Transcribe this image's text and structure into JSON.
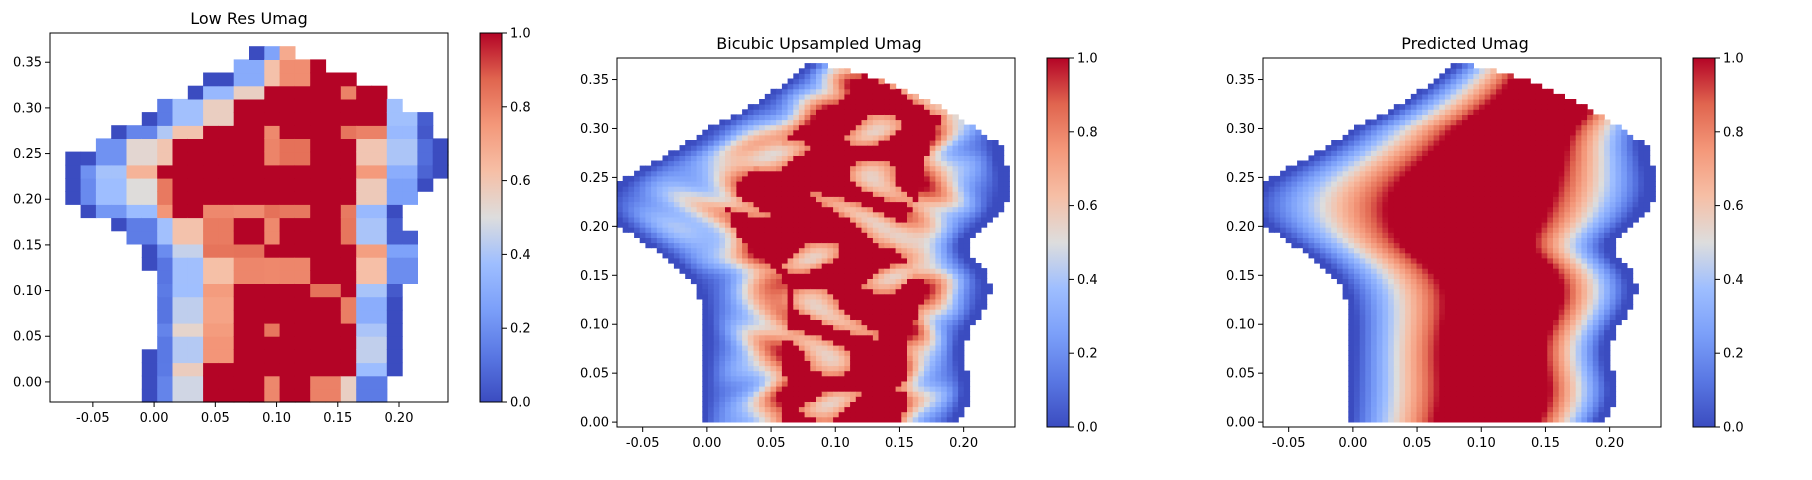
{
  "chart_data": [
    {
      "type": "heatmap",
      "title": "Low Res Umag",
      "xlabel": "",
      "ylabel": "",
      "x_ticks": [
        "-0.05",
        "0.00",
        "0.05",
        "0.10",
        "0.15",
        "0.20"
      ],
      "x_tick_values": [
        -0.05,
        0.0,
        0.05,
        0.1,
        0.15,
        0.2
      ],
      "y_ticks": [
        "0.00",
        "0.05",
        "0.10",
        "0.15",
        "0.20",
        "0.25",
        "0.30",
        "0.35"
      ],
      "y_tick_values": [
        0.0,
        0.05,
        0.1,
        0.15,
        0.2,
        0.25,
        0.3,
        0.35
      ],
      "xlim": [
        -0.085,
        0.24
      ],
      "ylim": [
        -0.022,
        0.382
      ],
      "colorbar": {
        "ticks": [
          "0.0",
          "0.2",
          "0.4",
          "0.6",
          "0.8",
          "1.0"
        ],
        "range": [
          0.0,
          1.0
        ],
        "colormap": "coolwarm"
      },
      "field_description": "coarse quadrilateral mesh; low values near left and right edges, saturated high values in center with scattered lower cells"
    },
    {
      "type": "heatmap",
      "title": "Bicubic Upsampled Umag",
      "xlabel": "",
      "ylabel": "",
      "x_ticks": [
        "-0.05",
        "0.00",
        "0.05",
        "0.10",
        "0.15",
        "0.20"
      ],
      "x_tick_values": [
        -0.05,
        0.0,
        0.05,
        0.1,
        0.15,
        0.2
      ],
      "y_ticks": [
        "0.00",
        "0.05",
        "0.10",
        "0.15",
        "0.20",
        "0.25",
        "0.30",
        "0.35"
      ],
      "y_tick_values": [
        0.0,
        0.05,
        0.1,
        0.15,
        0.2,
        0.25,
        0.3,
        0.35
      ],
      "xlim": [
        -0.07,
        0.24
      ],
      "ylim": [
        -0.005,
        0.372
      ],
      "colorbar": {
        "ticks": [
          "0.0",
          "0.2",
          "0.4",
          "0.6",
          "0.8",
          "1.0"
        ],
        "range": [
          0.0,
          1.0
        ],
        "colormap": "coolwarm"
      },
      "field_description": "smooth interpolated field; blue margins, red core with blobby low-value patches"
    },
    {
      "type": "heatmap",
      "title": "Predicted Umag",
      "xlabel": "",
      "ylabel": "",
      "x_ticks": [
        "-0.05",
        "0.00",
        "0.05",
        "0.10",
        "0.15",
        "0.20"
      ],
      "x_tick_values": [
        -0.05,
        0.0,
        0.05,
        0.1,
        0.15,
        0.2
      ],
      "y_ticks": [
        "0.00",
        "0.05",
        "0.10",
        "0.15",
        "0.20",
        "0.25",
        "0.30",
        "0.35"
      ],
      "y_tick_values": [
        0.0,
        0.05,
        0.1,
        0.15,
        0.2,
        0.25,
        0.3,
        0.35
      ],
      "xlim": [
        -0.07,
        0.24
      ],
      "ylim": [
        -0.005,
        0.372
      ],
      "colorbar": {
        "ticks": [
          "0.0",
          "0.2",
          "0.4",
          "0.6",
          "0.8",
          "1.0"
        ],
        "range": [
          0.0,
          1.0
        ],
        "colormap": "coolwarm"
      },
      "field_description": "smooth banded field; blue at left and right walls, saturated red band through the middle"
    }
  ]
}
